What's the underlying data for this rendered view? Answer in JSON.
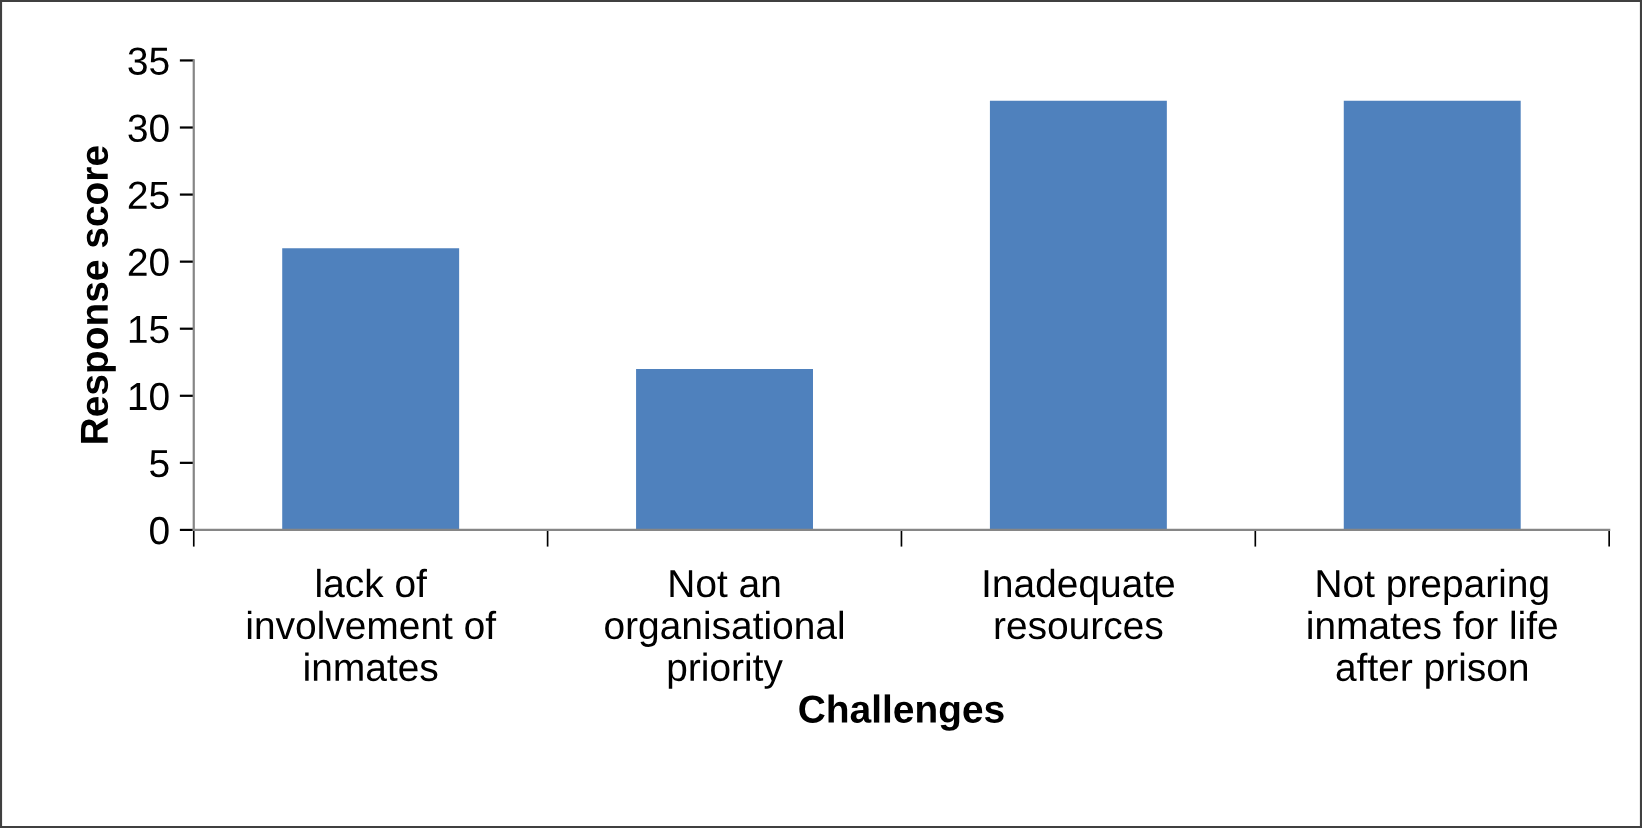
{
  "chart_data": {
    "type": "bar",
    "xlabel": "Challenges",
    "ylabel": "Response score",
    "categories": [
      "lack of\ninvolvement of\ninmates",
      "Not an\norganisational\npriority",
      "Inadequate\nresources",
      "Not preparing\ninmates for life\nafter prison"
    ],
    "values": [
      21,
      12,
      32,
      32
    ],
    "color": "#4f81bd",
    "ylim": [
      0,
      35
    ],
    "yticks": [
      0,
      5,
      10,
      15,
      20,
      25,
      30,
      35
    ],
    "grid": false,
    "legend": false
  }
}
